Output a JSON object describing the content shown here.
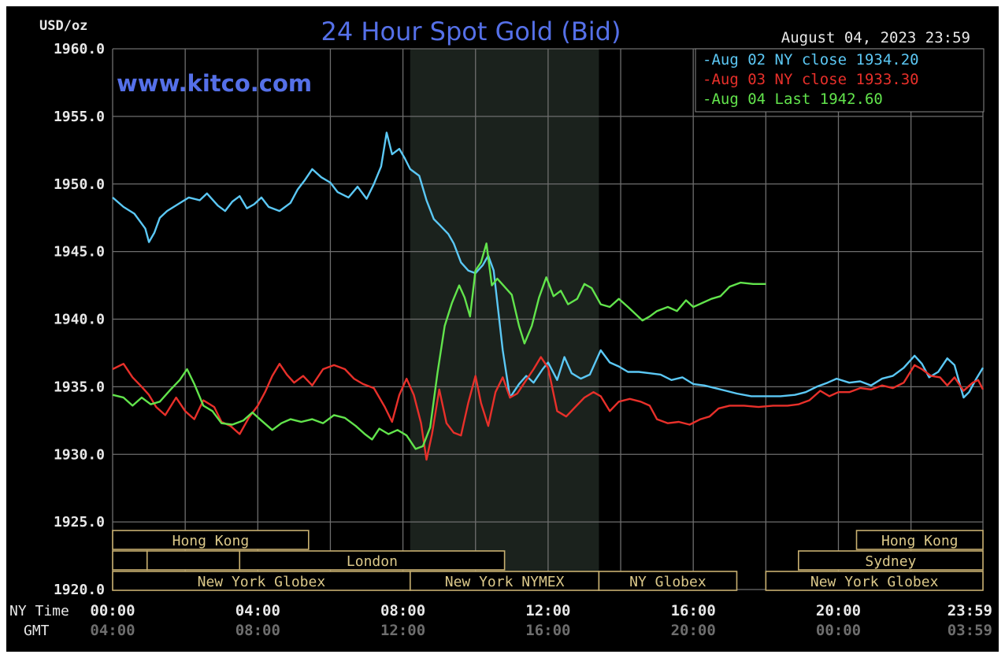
{
  "chart_data": {
    "type": "line",
    "title": "24 Hour Spot Gold (Bid)",
    "watermark": "www.kitco.com",
    "date_label": "August 04, 2023 23:59",
    "unit_label": "USD/oz",
    "ylim": [
      1920.0,
      1960.0
    ],
    "y_ticks": [
      "1960.0",
      "1955.0",
      "1950.0",
      "1945.0",
      "1940.0",
      "1935.0",
      "1930.0",
      "1925.0",
      "1920.0"
    ],
    "x_axis": {
      "row_label_ny": "NY Time",
      "row_label_gmt": "GMT",
      "ny_ticks": [
        "00:00",
        "04:00",
        "08:00",
        "12:00",
        "16:00",
        "20:00",
        "23:59"
      ],
      "gmt_ticks": [
        "04:00",
        "08:00",
        "12:00",
        "16:00",
        "20:00",
        "00:00",
        "03:59"
      ],
      "tick_hours": [
        0,
        4,
        8,
        12,
        16,
        20,
        23.983
      ]
    },
    "highlight_hours": [
      8.2,
      13.4
    ],
    "legend": [
      {
        "prefix": "-Aug 02",
        "label": "NY close",
        "value": "1934.20",
        "color": "#5bc8f5"
      },
      {
        "prefix": "-Aug 03",
        "label": "NY close",
        "value": "1933.30",
        "color": "#e8302a"
      },
      {
        "prefix": "-Aug 04",
        "label": "Last",
        "value": "1942.60",
        "color": "#62e44c"
      }
    ],
    "series": [
      {
        "name": "Aug 02",
        "color": "#5bc8f5",
        "points": [
          [
            0,
            1949.0
          ],
          [
            0.3,
            1948.3
          ],
          [
            0.6,
            1947.8
          ],
          [
            0.9,
            1946.7
          ],
          [
            1.0,
            1945.7
          ],
          [
            1.15,
            1946.4
          ],
          [
            1.3,
            1947.5
          ],
          [
            1.5,
            1948.0
          ],
          [
            1.8,
            1948.5
          ],
          [
            2.1,
            1949.0
          ],
          [
            2.4,
            1948.8
          ],
          [
            2.6,
            1949.3
          ],
          [
            2.9,
            1948.4
          ],
          [
            3.1,
            1948.0
          ],
          [
            3.3,
            1948.7
          ],
          [
            3.5,
            1949.1
          ],
          [
            3.7,
            1948.2
          ],
          [
            3.9,
            1948.5
          ],
          [
            4.1,
            1949.0
          ],
          [
            4.3,
            1948.3
          ],
          [
            4.6,
            1948.0
          ],
          [
            4.9,
            1948.6
          ],
          [
            5.1,
            1949.6
          ],
          [
            5.3,
            1950.3
          ],
          [
            5.5,
            1951.1
          ],
          [
            5.75,
            1950.5
          ],
          [
            6.0,
            1950.1
          ],
          [
            6.2,
            1949.4
          ],
          [
            6.5,
            1949.0
          ],
          [
            6.75,
            1949.8
          ],
          [
            7.0,
            1948.9
          ],
          [
            7.2,
            1950.0
          ],
          [
            7.4,
            1951.3
          ],
          [
            7.55,
            1953.8
          ],
          [
            7.7,
            1952.2
          ],
          [
            7.9,
            1952.6
          ],
          [
            8.05,
            1951.9
          ],
          [
            8.2,
            1951.1
          ],
          [
            8.45,
            1950.6
          ],
          [
            8.65,
            1948.8
          ],
          [
            8.85,
            1947.4
          ],
          [
            9.0,
            1947.0
          ],
          [
            9.25,
            1946.3
          ],
          [
            9.4,
            1945.6
          ],
          [
            9.6,
            1944.2
          ],
          [
            9.8,
            1943.6
          ],
          [
            10.0,
            1943.4
          ],
          [
            10.2,
            1944.0
          ],
          [
            10.35,
            1944.7
          ],
          [
            10.5,
            1943.6
          ],
          [
            10.75,
            1937.7
          ],
          [
            10.95,
            1934.2
          ],
          [
            11.2,
            1935.2
          ],
          [
            11.4,
            1935.8
          ],
          [
            11.6,
            1935.3
          ],
          [
            11.85,
            1936.3
          ],
          [
            12.0,
            1936.8
          ],
          [
            12.25,
            1935.5
          ],
          [
            12.45,
            1937.2
          ],
          [
            12.65,
            1936.0
          ],
          [
            12.9,
            1935.6
          ],
          [
            13.15,
            1935.9
          ],
          [
            13.45,
            1937.7
          ],
          [
            13.7,
            1936.8
          ],
          [
            13.95,
            1936.5
          ],
          [
            14.2,
            1936.1
          ],
          [
            14.5,
            1936.1
          ],
          [
            14.8,
            1936.0
          ],
          [
            15.1,
            1935.9
          ],
          [
            15.4,
            1935.5
          ],
          [
            15.7,
            1935.7
          ],
          [
            16.0,
            1935.2
          ],
          [
            16.3,
            1935.1
          ],
          [
            16.6,
            1934.9
          ],
          [
            16.9,
            1934.7
          ],
          [
            17.2,
            1934.5
          ],
          [
            17.6,
            1934.3
          ],
          [
            18.0,
            1934.3
          ],
          [
            18.4,
            1934.3
          ],
          [
            18.8,
            1934.4
          ],
          [
            19.1,
            1934.6
          ],
          [
            19.4,
            1935.0
          ],
          [
            19.7,
            1935.3
          ],
          [
            19.95,
            1935.6
          ],
          [
            20.3,
            1935.3
          ],
          [
            20.6,
            1935.4
          ],
          [
            20.9,
            1935.1
          ],
          [
            21.2,
            1935.6
          ],
          [
            21.5,
            1935.8
          ],
          [
            21.8,
            1936.4
          ],
          [
            22.1,
            1937.3
          ],
          [
            22.3,
            1936.7
          ],
          [
            22.5,
            1935.7
          ],
          [
            22.75,
            1936.1
          ],
          [
            23.0,
            1937.1
          ],
          [
            23.2,
            1936.6
          ],
          [
            23.45,
            1934.2
          ],
          [
            23.6,
            1934.6
          ],
          [
            23.8,
            1935.6
          ],
          [
            23.983,
            1936.4
          ]
        ]
      },
      {
        "name": "Aug 03",
        "color": "#e8302a",
        "points": [
          [
            0,
            1936.3
          ],
          [
            0.3,
            1936.7
          ],
          [
            0.55,
            1935.7
          ],
          [
            0.8,
            1935.0
          ],
          [
            1.0,
            1934.4
          ],
          [
            1.2,
            1933.5
          ],
          [
            1.45,
            1932.9
          ],
          [
            1.75,
            1934.2
          ],
          [
            2.0,
            1933.2
          ],
          [
            2.25,
            1932.6
          ],
          [
            2.5,
            1934.0
          ],
          [
            2.8,
            1933.5
          ],
          [
            3.0,
            1932.4
          ],
          [
            3.25,
            1932.1
          ],
          [
            3.5,
            1931.5
          ],
          [
            3.75,
            1932.7
          ],
          [
            4.0,
            1933.6
          ],
          [
            4.2,
            1934.6
          ],
          [
            4.4,
            1935.8
          ],
          [
            4.6,
            1936.7
          ],
          [
            4.8,
            1935.9
          ],
          [
            5.0,
            1935.3
          ],
          [
            5.25,
            1935.8
          ],
          [
            5.5,
            1935.1
          ],
          [
            5.8,
            1936.3
          ],
          [
            6.1,
            1936.6
          ],
          [
            6.4,
            1936.3
          ],
          [
            6.65,
            1935.6
          ],
          [
            6.9,
            1935.2
          ],
          [
            7.2,
            1934.9
          ],
          [
            7.5,
            1933.5
          ],
          [
            7.7,
            1932.4
          ],
          [
            7.9,
            1934.4
          ],
          [
            8.1,
            1935.6
          ],
          [
            8.3,
            1934.4
          ],
          [
            8.5,
            1932.3
          ],
          [
            8.65,
            1929.6
          ],
          [
            8.8,
            1931.5
          ],
          [
            9.0,
            1934.8
          ],
          [
            9.2,
            1932.3
          ],
          [
            9.4,
            1931.6
          ],
          [
            9.6,
            1931.4
          ],
          [
            9.8,
            1933.8
          ],
          [
            10.0,
            1935.8
          ],
          [
            10.15,
            1933.8
          ],
          [
            10.35,
            1932.1
          ],
          [
            10.55,
            1934.6
          ],
          [
            10.75,
            1935.7
          ],
          [
            10.95,
            1934.2
          ],
          [
            11.15,
            1934.5
          ],
          [
            11.35,
            1935.3
          ],
          [
            11.6,
            1936.3
          ],
          [
            11.8,
            1937.2
          ],
          [
            12.0,
            1936.4
          ],
          [
            12.25,
            1933.2
          ],
          [
            12.5,
            1932.8
          ],
          [
            12.75,
            1933.5
          ],
          [
            13.0,
            1934.2
          ],
          [
            13.25,
            1934.6
          ],
          [
            13.45,
            1934.3
          ],
          [
            13.7,
            1933.2
          ],
          [
            13.95,
            1933.9
          ],
          [
            14.25,
            1934.1
          ],
          [
            14.55,
            1933.9
          ],
          [
            14.8,
            1933.6
          ],
          [
            15.0,
            1932.6
          ],
          [
            15.3,
            1932.3
          ],
          [
            15.6,
            1932.4
          ],
          [
            15.9,
            1932.2
          ],
          [
            16.2,
            1932.6
          ],
          [
            16.45,
            1932.8
          ],
          [
            16.7,
            1933.4
          ],
          [
            17.0,
            1933.6
          ],
          [
            17.4,
            1933.6
          ],
          [
            17.8,
            1933.5
          ],
          [
            18.2,
            1933.6
          ],
          [
            18.6,
            1933.6
          ],
          [
            18.9,
            1933.7
          ],
          [
            19.2,
            1934.0
          ],
          [
            19.5,
            1934.7
          ],
          [
            19.75,
            1934.3
          ],
          [
            20.0,
            1934.6
          ],
          [
            20.3,
            1934.6
          ],
          [
            20.6,
            1934.9
          ],
          [
            20.9,
            1934.8
          ],
          [
            21.2,
            1935.1
          ],
          [
            21.5,
            1934.9
          ],
          [
            21.8,
            1935.3
          ],
          [
            22.1,
            1936.6
          ],
          [
            22.3,
            1936.3
          ],
          [
            22.55,
            1935.8
          ],
          [
            22.8,
            1935.7
          ],
          [
            23.0,
            1935.1
          ],
          [
            23.2,
            1935.7
          ],
          [
            23.45,
            1934.7
          ],
          [
            23.7,
            1935.3
          ],
          [
            23.85,
            1935.5
          ],
          [
            23.983,
            1934.8
          ]
        ]
      },
      {
        "name": "Aug 04",
        "color": "#62e44c",
        "points": [
          [
            0,
            1934.4
          ],
          [
            0.3,
            1934.2
          ],
          [
            0.55,
            1933.6
          ],
          [
            0.8,
            1934.2
          ],
          [
            1.05,
            1933.7
          ],
          [
            1.3,
            1933.9
          ],
          [
            1.6,
            1934.8
          ],
          [
            1.85,
            1935.5
          ],
          [
            2.05,
            1936.3
          ],
          [
            2.25,
            1935.2
          ],
          [
            2.5,
            1933.6
          ],
          [
            2.75,
            1933.2
          ],
          [
            3.0,
            1932.3
          ],
          [
            3.3,
            1932.2
          ],
          [
            3.6,
            1932.5
          ],
          [
            3.85,
            1933.1
          ],
          [
            4.1,
            1932.5
          ],
          [
            4.4,
            1931.8
          ],
          [
            4.65,
            1932.3
          ],
          [
            4.9,
            1932.6
          ],
          [
            5.2,
            1932.4
          ],
          [
            5.5,
            1932.6
          ],
          [
            5.8,
            1932.3
          ],
          [
            6.1,
            1932.9
          ],
          [
            6.4,
            1932.7
          ],
          [
            6.7,
            1932.1
          ],
          [
            6.95,
            1931.5
          ],
          [
            7.15,
            1931.1
          ],
          [
            7.35,
            1931.9
          ],
          [
            7.6,
            1931.5
          ],
          [
            7.85,
            1931.8
          ],
          [
            8.1,
            1931.4
          ],
          [
            8.35,
            1930.4
          ],
          [
            8.55,
            1930.6
          ],
          [
            8.75,
            1932.0
          ],
          [
            8.95,
            1936.0
          ],
          [
            9.15,
            1939.5
          ],
          [
            9.35,
            1941.2
          ],
          [
            9.55,
            1942.5
          ],
          [
            9.7,
            1941.6
          ],
          [
            9.85,
            1940.2
          ],
          [
            10.0,
            1943.6
          ],
          [
            10.15,
            1944.2
          ],
          [
            10.3,
            1945.6
          ],
          [
            10.45,
            1942.5
          ],
          [
            10.6,
            1943.0
          ],
          [
            10.8,
            1942.4
          ],
          [
            11.0,
            1941.8
          ],
          [
            11.2,
            1939.5
          ],
          [
            11.35,
            1938.2
          ],
          [
            11.55,
            1939.5
          ],
          [
            11.75,
            1941.6
          ],
          [
            11.95,
            1943.1
          ],
          [
            12.15,
            1941.7
          ],
          [
            12.35,
            1942.1
          ],
          [
            12.55,
            1941.1
          ],
          [
            12.8,
            1941.5
          ],
          [
            13.0,
            1942.6
          ],
          [
            13.2,
            1942.3
          ],
          [
            13.45,
            1941.1
          ],
          [
            13.7,
            1940.9
          ],
          [
            13.95,
            1941.5
          ],
          [
            14.2,
            1940.9
          ],
          [
            14.4,
            1940.4
          ],
          [
            14.6,
            1939.9
          ],
          [
            14.8,
            1940.2
          ],
          [
            15.0,
            1940.6
          ],
          [
            15.3,
            1940.9
          ],
          [
            15.55,
            1940.6
          ],
          [
            15.8,
            1941.4
          ],
          [
            16.0,
            1940.9
          ],
          [
            16.25,
            1941.2
          ],
          [
            16.5,
            1941.5
          ],
          [
            16.75,
            1941.7
          ],
          [
            17.0,
            1942.4
          ],
          [
            17.3,
            1942.7
          ],
          [
            17.65,
            1942.6
          ],
          [
            18.0,
            1942.6
          ]
        ]
      }
    ],
    "sessions": [
      {
        "label": "Hong Kong",
        "row": 0,
        "start": 0,
        "end": 5.4
      },
      {
        "label": "",
        "row": 1,
        "start": 0,
        "end": 0.95
      },
      {
        "label": "",
        "row": 1,
        "start": 0.95,
        "end": 3.5
      },
      {
        "label": "London",
        "row": 1,
        "start": 3.5,
        "end": 10.8
      },
      {
        "label": "New York Globex",
        "row": 2,
        "start": 0,
        "end": 8.2
      },
      {
        "label": "New York NYMEX",
        "row": 2,
        "start": 8.2,
        "end": 13.4
      },
      {
        "label": "NY Globex",
        "row": 2,
        "start": 13.4,
        "end": 17.2
      },
      {
        "label": "Hong Kong",
        "row": 0,
        "start": 20.5,
        "end": 23.983
      },
      {
        "label": "Sydney",
        "row": 1,
        "start": 18.9,
        "end": 23.983
      },
      {
        "label": "New York Globex",
        "row": 2,
        "start": 18.0,
        "end": 23.983
      }
    ]
  }
}
